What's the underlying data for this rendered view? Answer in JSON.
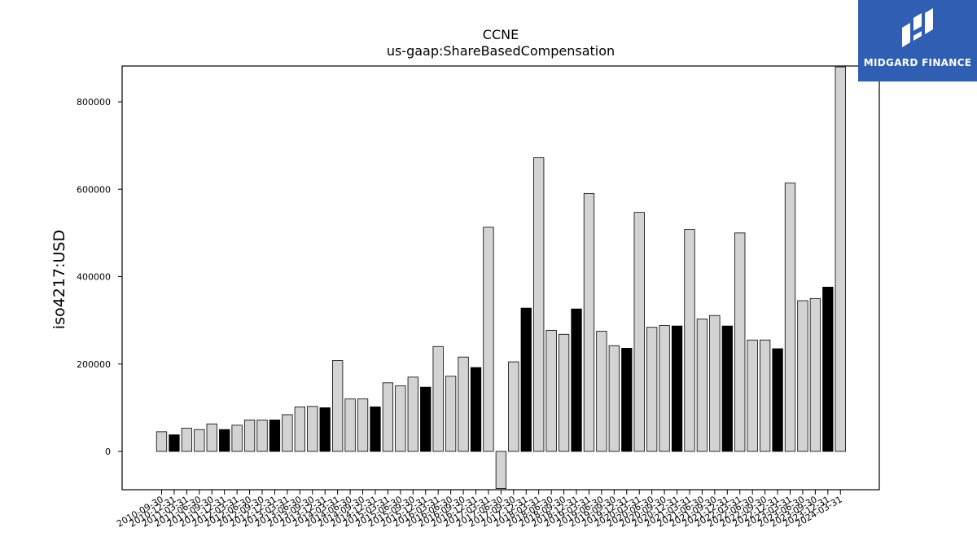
{
  "logo": {
    "text": "MIDGARD FINANCE",
    "background": "#2f5eb3"
  },
  "chart_data": {
    "type": "bar",
    "title": "CCNE",
    "subtitle": "us-gaap:ShareBasedCompensation",
    "xlabel": "",
    "ylabel": "iso4217:USD",
    "ylim": [
      -85000,
      880000
    ],
    "yticks": [
      0,
      200000,
      400000,
      600000,
      800000
    ],
    "grid": false,
    "colors": {
      "quarterly": "#d3d3d3",
      "annual": "#000000",
      "edge": "#000000"
    },
    "categories": [
      "2010-09-30",
      "2010-12-31",
      "2011-03-31",
      "2011-06-30",
      "2011-09-30",
      "2011-12-31",
      "2012-03-31",
      "2012-06-30",
      "2012-09-30",
      "2012-12-31",
      "2013-03-31",
      "2013-06-30",
      "2013-09-30",
      "2013-12-31",
      "2014-03-31",
      "2014-06-30",
      "2014-09-30",
      "2014-12-31",
      "2015-03-31",
      "2015-06-30",
      "2015-09-30",
      "2015-12-31",
      "2016-03-31",
      "2016-06-30",
      "2016-09-30",
      "2016-12-31",
      "2017-03-31",
      "2017-06-30",
      "2017-09-30",
      "2017-12-31",
      "2018-03-31",
      "2018-06-30",
      "2018-09-30",
      "2018-12-31",
      "2019-03-31",
      "2019-06-30",
      "2019-09-30",
      "2019-12-31",
      "2020-03-31",
      "2020-06-30",
      "2020-09-30",
      "2020-12-31",
      "2021-03-31",
      "2021-06-30",
      "2021-09-30",
      "2021-12-31",
      "2022-03-31",
      "2022-06-30",
      "2022-09-30",
      "2022-12-31",
      "2023-03-31",
      "2023-06-30",
      "2023-09-30",
      "2023-12-31",
      "2024-03-31"
    ],
    "values": [
      45000,
      38000,
      53000,
      50000,
      63000,
      50000,
      60000,
      72000,
      72000,
      72000,
      84000,
      102000,
      103000,
      100000,
      208000,
      120000,
      120000,
      102000,
      157000,
      150000,
      170000,
      147000,
      240000,
      172000,
      216000,
      192000,
      513000,
      -85000,
      205000,
      328000,
      672000,
      277000,
      268000,
      326000,
      590000,
      275000,
      242000,
      236000,
      547000,
      284000,
      288000,
      287000,
      508000,
      303000,
      311000,
      287000,
      500000,
      255000,
      255000,
      235000,
      614000,
      345000,
      350000,
      376000,
      880000
    ],
    "annual": [
      false,
      true,
      false,
      false,
      false,
      true,
      false,
      false,
      false,
      true,
      false,
      false,
      false,
      true,
      false,
      false,
      false,
      true,
      false,
      false,
      false,
      true,
      false,
      false,
      false,
      true,
      false,
      false,
      false,
      true,
      false,
      false,
      false,
      true,
      false,
      false,
      false,
      true,
      false,
      false,
      false,
      true,
      false,
      false,
      false,
      true,
      false,
      false,
      false,
      true,
      false,
      false,
      false,
      true,
      false
    ]
  }
}
